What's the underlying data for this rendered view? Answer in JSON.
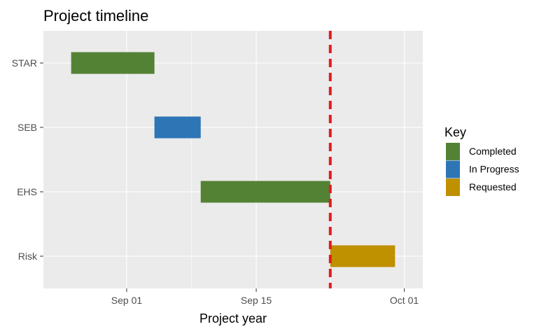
{
  "chart_data": {
    "type": "gantt",
    "title": "Project timeline",
    "xlabel": "Project year",
    "ylabel": "",
    "x_range": [
      "2024-08-23",
      "2024-10-03"
    ],
    "x_ticks": [
      {
        "date": "2024-09-01",
        "label": "Sep 01"
      },
      {
        "date": "2024-09-15",
        "label": "Sep 15"
      },
      {
        "date": "2024-10-01",
        "label": "Oct 01"
      }
    ],
    "grid": true,
    "legend_title": "Key",
    "legend_position": "right",
    "categories": [
      "STAR",
      "SEB",
      "EHS",
      "Risk"
    ],
    "tasks": [
      {
        "name": "STAR",
        "start": "2024-08-26",
        "end": "2024-09-04",
        "status": "Completed"
      },
      {
        "name": "SEB",
        "start": "2024-09-04",
        "end": "2024-09-09",
        "status": "In Progress"
      },
      {
        "name": "EHS",
        "start": "2024-09-09",
        "end": "2024-09-23",
        "status": "Completed"
      },
      {
        "name": "Risk",
        "start": "2024-09-23",
        "end": "2024-09-30",
        "status": "Requested"
      }
    ],
    "reference_line": {
      "date": "2024-09-23",
      "color": "#e41a1c",
      "style": "dashed"
    },
    "legend": [
      {
        "label": "Completed",
        "color": "#548235"
      },
      {
        "label": "In Progress",
        "color": "#2e75b6"
      },
      {
        "label": "Requested",
        "color": "#bf9000"
      }
    ],
    "panel_background": "#ebebeb"
  }
}
